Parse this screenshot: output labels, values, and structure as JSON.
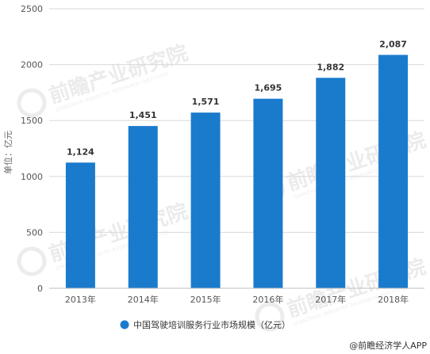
{
  "chart_data": {
    "type": "bar",
    "categories": [
      "2013年",
      "2014年",
      "2015年",
      "2016年",
      "2017年",
      "2018年"
    ],
    "series": [
      {
        "name": "中国驾驶培训服务行业市场规模（亿元）",
        "values": [
          1124,
          1451,
          1571,
          1695,
          1882,
          2087
        ]
      }
    ],
    "data_labels": [
      "1,124",
      "1,451",
      "1,571",
      "1,695",
      "1,882",
      "2,087"
    ],
    "ylabel": "单位：亿元",
    "ylim": [
      0,
      2500
    ],
    "yticks": [
      0,
      500,
      1000,
      1500,
      2000,
      2500
    ],
    "grid": true,
    "legend_position": "bottom",
    "bar_color": "#1a7bcd",
    "source": "@前瞻经济学人APP"
  },
  "watermark": {
    "text": "前瞻产业研究院",
    "sub": "QIANZHAN INDUSTRY RESEARCH INSTITUTE"
  }
}
